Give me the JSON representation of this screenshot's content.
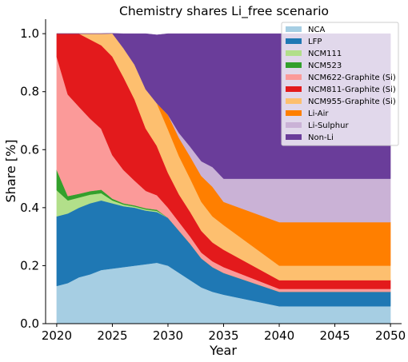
{
  "chart_data": {
    "type": "area",
    "stacked": true,
    "title": "Chemistry shares Li_free scenario",
    "xlabel": "Year",
    "ylabel": "Share [%]",
    "xlim": [
      2019,
      2051
    ],
    "ylim": [
      0,
      1.05
    ],
    "x_ticks": [
      2020,
      2025,
      2030,
      2035,
      2040,
      2045,
      2050
    ],
    "y_ticks": [
      0.0,
      0.2,
      0.4,
      0.6,
      0.8,
      1.0
    ],
    "legend_position": "top-right",
    "grid": false,
    "x": [
      2020,
      2021,
      2022,
      2023,
      2024,
      2025,
      2026,
      2027,
      2028,
      2029,
      2030,
      2031,
      2032,
      2033,
      2034,
      2035,
      2040,
      2045,
      2050
    ],
    "series": [
      {
        "name": "NCA",
        "color": "#a6cee3",
        "values": [
          0.13,
          0.14,
          0.16,
          0.17,
          0.185,
          0.19,
          0.195,
          0.2,
          0.205,
          0.21,
          0.2,
          0.175,
          0.15,
          0.125,
          0.11,
          0.1,
          0.06,
          0.06,
          0.06
        ]
      },
      {
        "name": "LFP",
        "color": "#1f78b4",
        "values": [
          0.24,
          0.24,
          0.24,
          0.245,
          0.24,
          0.225,
          0.21,
          0.2,
          0.185,
          0.175,
          0.165,
          0.145,
          0.125,
          0.1,
          0.085,
          0.075,
          0.05,
          0.05,
          0.05
        ]
      },
      {
        "name": "NCM111",
        "color": "#b2df8a",
        "values": [
          0.09,
          0.045,
          0.035,
          0.03,
          0.025,
          0.01,
          0.006,
          0.004,
          0.004,
          0.004,
          0.0,
          0.0,
          0.0,
          0.0,
          0.0,
          0.0,
          0.0,
          0.0,
          0.0
        ]
      },
      {
        "name": "NCM523",
        "color": "#33a02c",
        "values": [
          0.07,
          0.015,
          0.013,
          0.012,
          0.012,
          0.006,
          0.004,
          0.004,
          0.004,
          0.004,
          0.0,
          0.0,
          0.0,
          0.0,
          0.0,
          0.0,
          0.0,
          0.0,
          0.0
        ]
      },
      {
        "name": "NCM622-Graphite (Si)",
        "color": "#fb9a99",
        "values": [
          0.39,
          0.35,
          0.3,
          0.25,
          0.21,
          0.15,
          0.115,
          0.085,
          0.06,
          0.05,
          0.035,
          0.03,
          0.025,
          0.02,
          0.02,
          0.02,
          0.01,
          0.01,
          0.01
        ]
      },
      {
        "name": "NCM811-Graphite (Si)",
        "color": "#e31a1c",
        "values": [
          0.08,
          0.21,
          0.252,
          0.273,
          0.288,
          0.34,
          0.32,
          0.28,
          0.215,
          0.17,
          0.12,
          0.095,
          0.085,
          0.075,
          0.065,
          0.06,
          0.03,
          0.03,
          0.03
        ]
      },
      {
        "name": "NCM955-Graphite (Si)",
        "color": "#fdbf6f",
        "values": [
          0.0,
          0.0,
          0.0,
          0.02,
          0.04,
          0.08,
          0.1,
          0.12,
          0.135,
          0.147,
          0.15,
          0.132,
          0.115,
          0.1,
          0.09,
          0.085,
          0.05,
          0.05,
          0.05
        ]
      },
      {
        "name": "Li-Air",
        "color": "#ff7f00",
        "values": [
          0.0,
          0.0,
          0.0,
          0.0,
          0.0,
          0.0,
          0.0,
          0.0,
          0.0,
          0.0,
          0.05,
          0.063,
          0.076,
          0.089,
          0.102,
          0.08,
          0.15,
          0.15,
          0.15
        ]
      },
      {
        "name": "Li-Sulphur",
        "color": "#cab2d6",
        "values": [
          0.0,
          0.0,
          0.0,
          0.0,
          0.0,
          0.0,
          0.0,
          0.0,
          0.0,
          0.0,
          0.0,
          0.017,
          0.034,
          0.051,
          0.068,
          0.08,
          0.15,
          0.15,
          0.15
        ]
      },
      {
        "name": "Non-Li",
        "color": "#6a3d9a",
        "values": [
          0.0,
          0.0,
          0.0,
          0.0,
          0.0,
          0.0,
          0.05,
          0.107,
          0.192,
          0.236,
          0.28,
          0.343,
          0.39,
          0.44,
          0.46,
          0.5,
          0.5,
          0.5,
          0.5
        ]
      }
    ]
  }
}
